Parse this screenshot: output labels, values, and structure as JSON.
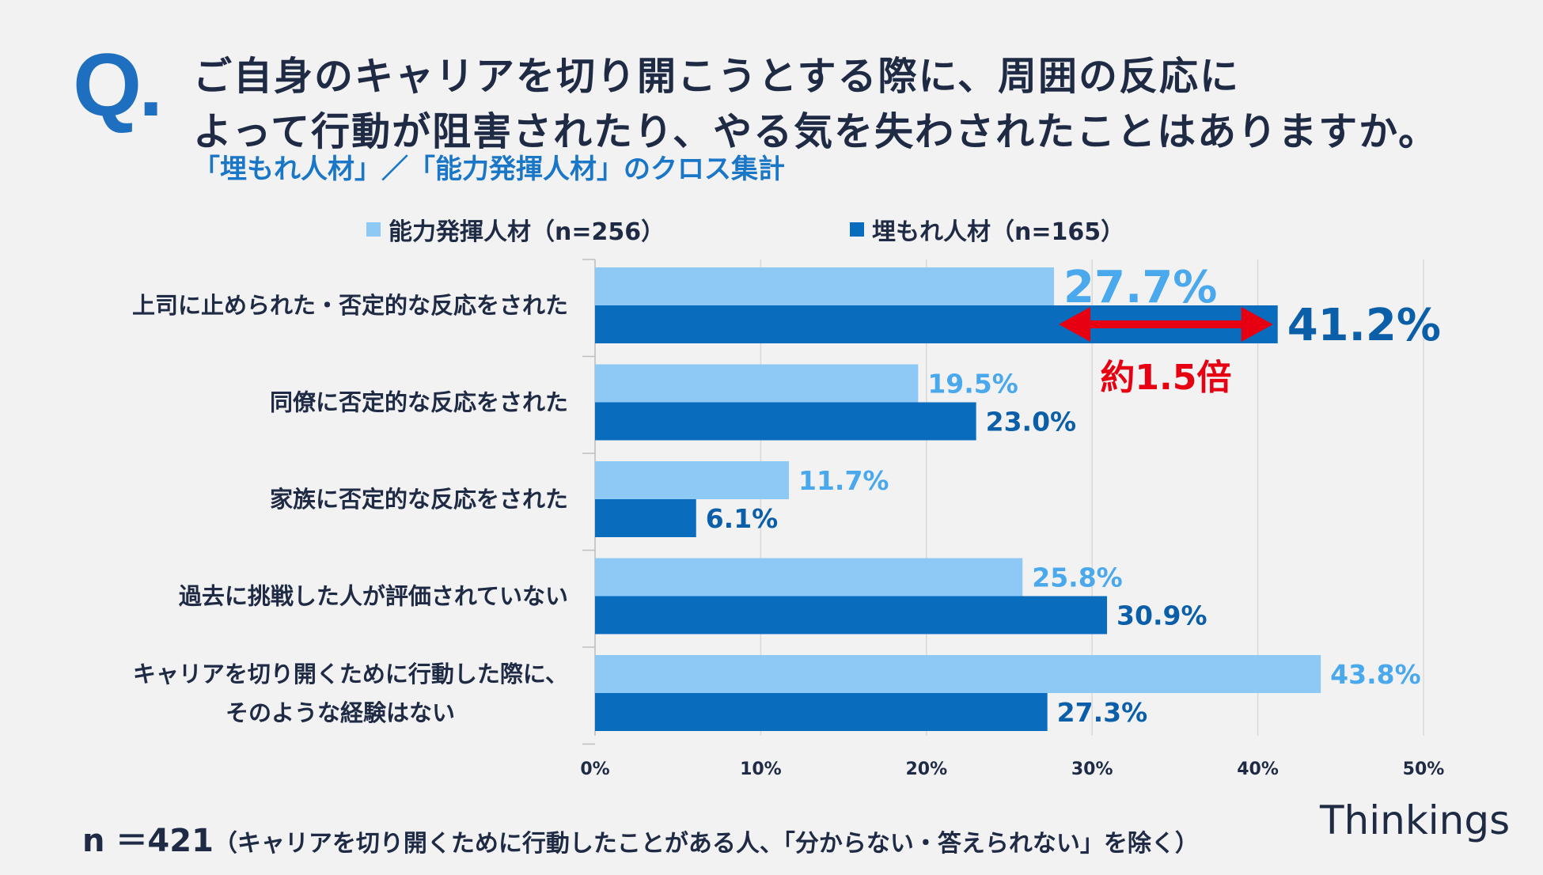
{
  "header": {
    "q_mark": "Q.",
    "title_line1": "ご自身のキャリアを切り開こうとする際に、周囲の反応に",
    "title_line2": "よって行動が阻害されたり、やる気を失わされたことはありますか。",
    "subtitle": "「埋もれ人材」／「能力発揮人材」のクロス集計"
  },
  "footer": {
    "n_label": "n ＝421",
    "n_note": "（キャリアを切り開くために行動したことがある人、「分からない・答えられない」を除く）",
    "brand": "Thinkings"
  },
  "colors": {
    "light_series": "#8ec8f5",
    "dark_series": "#0a6cbd",
    "light_label": "#4aa8ec",
    "dark_label": "#0a5fa8",
    "highlight": "#e60012",
    "grid": "#d9d9d9"
  },
  "chart_data": {
    "type": "bar",
    "orientation": "horizontal",
    "categories": [
      [
        "上司に止められた・否定的な反応をされた"
      ],
      [
        "同僚に否定的な反応をされた"
      ],
      [
        "家族に否定的な反応をされた"
      ],
      [
        "過去に挑戦した人が評価されていない"
      ],
      [
        "キャリアを切り開くために行動した際に、",
        "そのような経験はない"
      ]
    ],
    "series": [
      {
        "name": "能力発揮人材（n=256）",
        "values": [
          27.7,
          19.5,
          11.7,
          25.8,
          43.8
        ],
        "labels": [
          "27.7%",
          "19.5%",
          "11.7%",
          "25.8%",
          "43.8%"
        ]
      },
      {
        "name": "埋もれ人材（n=165）",
        "values": [
          41.2,
          23.0,
          6.1,
          30.9,
          27.3
        ],
        "labels": [
          "41.2%",
          "23.0%",
          "6.1%",
          "30.9%",
          "27.3%"
        ]
      }
    ],
    "xlim": [
      0,
      50
    ],
    "xticks": [
      0,
      10,
      20,
      30,
      40,
      50
    ],
    "xtick_labels": [
      "0%",
      "10%",
      "20%",
      "30%",
      "40%",
      "50%"
    ],
    "grid": true,
    "legend_position": "top",
    "annotation": {
      "text": "約1.5倍",
      "category_index": 0,
      "from_value": 27.7,
      "to_value": 41.2
    }
  }
}
